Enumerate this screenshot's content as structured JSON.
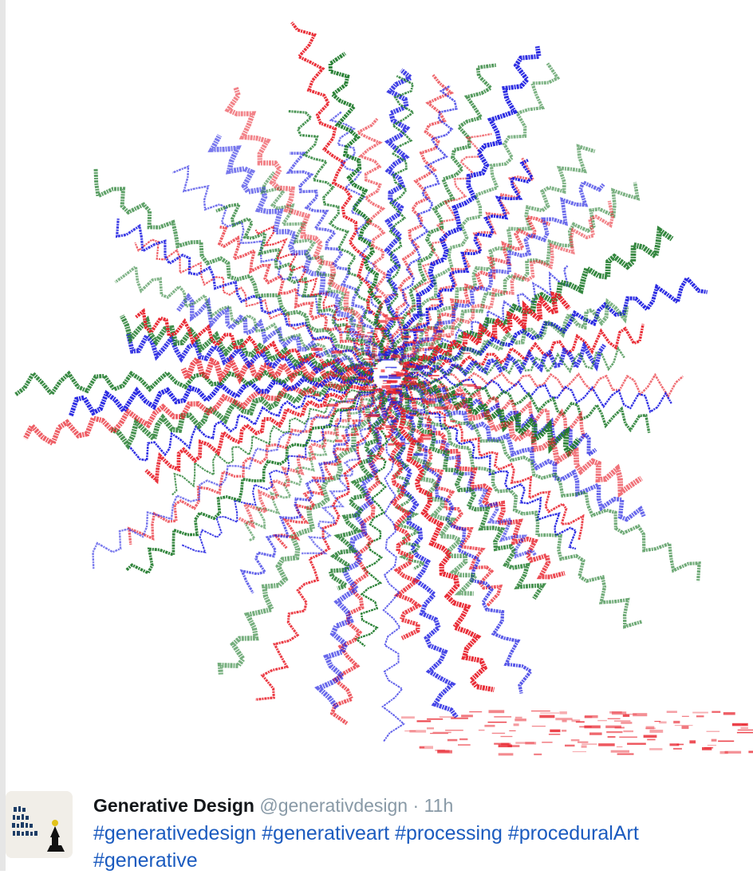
{
  "tweet": {
    "display_name": "Generative Design",
    "handle": "@generativdesign",
    "separator": "·",
    "time": "11h",
    "hashtags": [
      "#generativedesign",
      "#generativeart",
      "#processing",
      "#proceduralArt",
      "#generative"
    ]
  },
  "artwork": {
    "palette": [
      "#e8202a",
      "#1a1ae0",
      "#1e7a2a"
    ]
  }
}
